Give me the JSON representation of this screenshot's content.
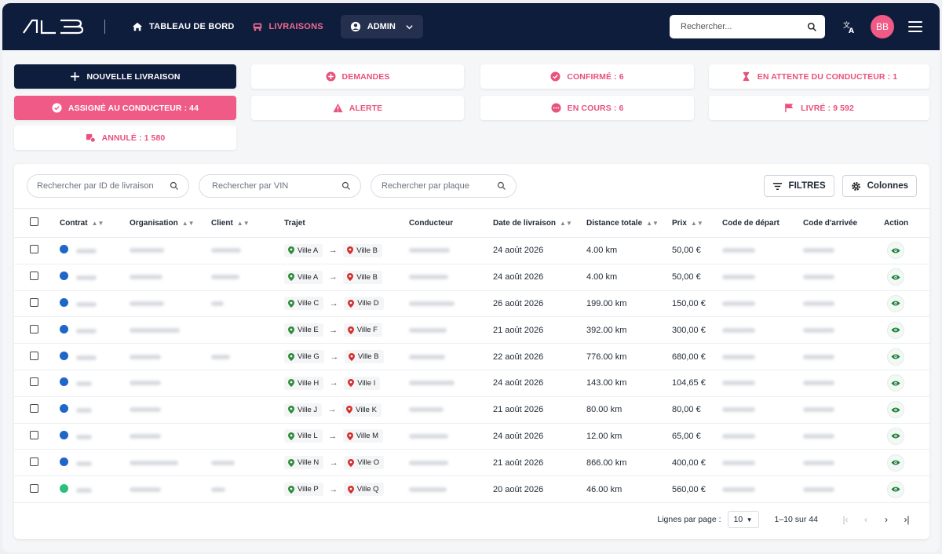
{
  "header": {
    "nav": [
      {
        "label": "TABLEAU DE BORD",
        "icon": "home-icon"
      },
      {
        "label": "LIVRAISONS",
        "icon": "truck-icon"
      }
    ],
    "admin_label": "ADMIN",
    "search_placeholder": "Rechercher...",
    "avatar_initials": "BB"
  },
  "status_buttons": {
    "new_delivery": "NOUVELLE LIVRAISON",
    "assigned": "ASSIGNÉ AU CONDUCTEUR : 44",
    "cancelled": "ANNULÉ : 1 580",
    "requests": "DEMANDES",
    "alert": "ALERTE",
    "confirmed": "CONFIRMÉ : 6",
    "in_progress": "EN COURS : 6",
    "waiting_driver": "EN ATTENTE DU CONDUCTEUR : 1",
    "delivered": "LIVRÉ : 9 592"
  },
  "filters": {
    "search_id": "Rechercher par ID de livraison",
    "search_vin": "Rechercher par VIN",
    "search_plate": "Rechercher par plaque",
    "filters_label": "FILTRES",
    "columns_label": "Colonnes"
  },
  "table": {
    "headers": {
      "contract": "Contrat",
      "organisation": "Organisation",
      "client": "Client",
      "route": "Trajet",
      "driver": "Conducteur",
      "date": "Date de livraison",
      "distance": "Distance totale",
      "price": "Prix",
      "start_code": "Code de départ",
      "end_code": "Code d'arrivée",
      "action": "Action"
    },
    "rows": [
      {
        "from": "Ville A",
        "to": "Ville B",
        "date": "24 août 2026",
        "distance": "4.00 km",
        "price": "50,00 €",
        "status_color": "#1f66c8"
      },
      {
        "from": "Ville A",
        "to": "Ville B",
        "date": "24 août 2026",
        "distance": "4.00 km",
        "price": "50,00 €",
        "status_color": "#1f66c8"
      },
      {
        "from": "Ville C",
        "to": "Ville D",
        "date": "26 août 2026",
        "distance": "199.00 km",
        "price": "150,00 €",
        "status_color": "#1f66c8"
      },
      {
        "from": "Ville E",
        "to": "Ville F",
        "date": "21 août 2026",
        "distance": "392.00 km",
        "price": "300,00 €",
        "status_color": "#1f66c8"
      },
      {
        "from": "Ville G",
        "to": "Ville B",
        "date": "22 août 2026",
        "distance": "776.00 km",
        "price": "680,00 €",
        "status_color": "#1f66c8"
      },
      {
        "from": "Ville H",
        "to": "Ville I",
        "date": "24 août 2026",
        "distance": "143.00 km",
        "price": "104,65 €",
        "status_color": "#1f66c8"
      },
      {
        "from": "Ville J",
        "to": "Ville K",
        "date": "21 août 2026",
        "distance": "80.00 km",
        "price": "80,00 €",
        "status_color": "#1f66c8"
      },
      {
        "from": "Ville L",
        "to": "Ville M",
        "date": "24 août 2026",
        "distance": "12.00 km",
        "price": "65,00 €",
        "status_color": "#1f66c8"
      },
      {
        "from": "Ville N",
        "to": "Ville O",
        "date": "21 août 2026",
        "distance": "866.00 km",
        "price": "400,00 €",
        "status_color": "#1f66c8"
      },
      {
        "from": "Ville P",
        "to": "Ville Q",
        "date": "20 août 2026",
        "distance": "46.00 km",
        "price": "560,00 €",
        "status_color": "#2bbf7d"
      }
    ]
  },
  "pagination": {
    "rows_per_page_label": "Lignes par page :",
    "rows_per_page_value": "10",
    "range": "1–10 sur 44"
  },
  "colors": {
    "navy": "#0f1d3d",
    "pink": "#ef5a86",
    "status_blue": "#1f66c8",
    "status_green": "#2bbf7d"
  }
}
